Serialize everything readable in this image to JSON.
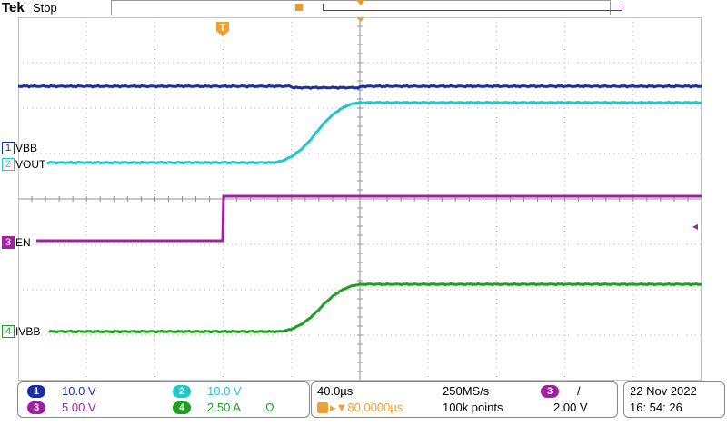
{
  "header": {
    "brand": "Tek",
    "status": "Stop"
  },
  "markers": {
    "trigger_glyph": "T",
    "position_glyph": "▼",
    "cursor_glyph": "◂"
  },
  "channels": [
    {
      "num": "1",
      "label": "VBB",
      "color": "#1a2ea8"
    },
    {
      "num": "2",
      "label": "VOUT",
      "color": "#20c8c8"
    },
    {
      "num": "3",
      "label": "EN",
      "color": "#a020a0"
    },
    {
      "num": "4",
      "label": "IVBB",
      "color": "#20a020"
    }
  ],
  "vertical": [
    {
      "num": "1",
      "scale": "10.0 V",
      "color": "#1a2ea8"
    },
    {
      "num": "2",
      "scale": "10.0 V",
      "color": "#20c8c8"
    },
    {
      "num": "3",
      "scale": "5.00 V",
      "color": "#a020a0"
    },
    {
      "num": "4",
      "scale": "2.50 A",
      "unit_icon": "Ω",
      "color": "#20a020"
    }
  ],
  "horizontal": {
    "timebase": "40.0µs",
    "sample_rate": "250MS/s",
    "delay": "▸▼80.0000µs",
    "record_length": "100k points"
  },
  "trigger": {
    "source": "3",
    "slope": "/",
    "level": "2.00 V",
    "color": "#a020a0"
  },
  "datetime": {
    "date": "22 Nov  2022",
    "time": "16: 54: 26"
  },
  "colors": {
    "grid": "#b8b8b8",
    "axis": "#909090"
  }
}
